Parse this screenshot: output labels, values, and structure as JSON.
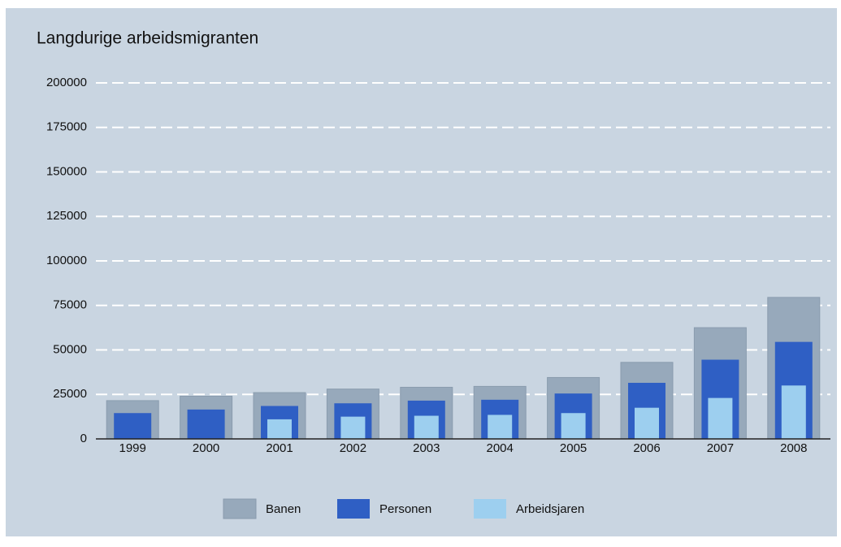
{
  "chart_data": {
    "type": "bar",
    "title": "Langdurige arbeidsmigranten",
    "categories": [
      "1999",
      "2000",
      "2001",
      "2002",
      "2003",
      "2004",
      "2005",
      "2006",
      "2007",
      "2008"
    ],
    "series": [
      {
        "name": "Banen",
        "color": "#97a9bb",
        "values": [
          21500,
          24000,
          26000,
          28000,
          29000,
          29500,
          34500,
          43000,
          62500,
          79500
        ]
      },
      {
        "name": "Personen",
        "color": "#2f5fc4",
        "values": [
          14500,
          16500,
          18500,
          20000,
          21500,
          22000,
          25500,
          31500,
          44500,
          54500
        ]
      },
      {
        "name": "Arbeidsjaren",
        "color": "#9dcfef",
        "values": [
          null,
          null,
          11000,
          12500,
          13000,
          13500,
          14500,
          17500,
          23000,
          30000
        ]
      }
    ],
    "ylim": [
      0,
      200000
    ],
    "yticks": [
      0,
      25000,
      50000,
      75000,
      100000,
      125000,
      150000,
      175000,
      200000
    ],
    "grid": true
  }
}
